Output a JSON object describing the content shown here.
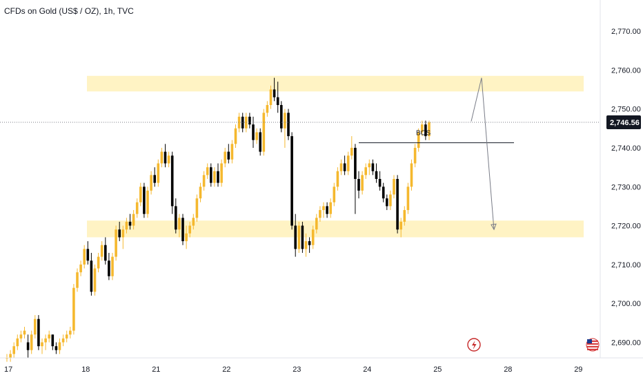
{
  "header": {
    "title": "CFDs on Gold (US$ / OZ), 1h, TVC"
  },
  "current_price": {
    "label": "2,746.56",
    "value": 2746.56,
    "bg_color": "#131722"
  },
  "colors": {
    "up": "#f5b82e",
    "down": "#000000",
    "zone": "#fff3c4",
    "annotation": "#787b86"
  },
  "icons": {
    "event": "lightning-icon",
    "flag": "us-flag-icon"
  },
  "chart_data": {
    "type": "candlestick",
    "title": "CFDs on Gold (US$ / OZ), 1h, TVC",
    "ylim": [
      2686,
      2778
    ],
    "y_ticks": [
      {
        "value": 2770,
        "label": "2,770.00"
      },
      {
        "value": 2760,
        "label": "2,760.00"
      },
      {
        "value": 2750,
        "label": "2,750.00"
      },
      {
        "value": 2740,
        "label": "2,740.00"
      },
      {
        "value": 2730,
        "label": "2,730.00"
      },
      {
        "value": 2720,
        "label": "2,720.00"
      },
      {
        "value": 2710,
        "label": "2,710.00"
      },
      {
        "value": 2700,
        "label": "2,700.00"
      },
      {
        "value": 2690,
        "label": "2,690.00"
      }
    ],
    "x_ticks": [
      {
        "index": 0,
        "label": "17"
      },
      {
        "index": 22,
        "label": "18"
      },
      {
        "index": 42,
        "label": "21"
      },
      {
        "index": 62,
        "label": "22"
      },
      {
        "index": 82,
        "label": "23"
      },
      {
        "index": 102,
        "label": "24"
      },
      {
        "index": 122,
        "label": "25"
      },
      {
        "index": 142,
        "label": "28"
      },
      {
        "index": 162,
        "label": "29"
      }
    ],
    "candles": [
      [
        2686,
        2687,
        2685,
        2686
      ],
      [
        2686,
        2688,
        2685,
        2687
      ],
      [
        2687,
        2690,
        2686,
        2689
      ],
      [
        2689,
        2692,
        2688,
        2691
      ],
      [
        2691,
        2693,
        2690,
        2692
      ],
      [
        2692,
        2694,
        2691,
        2693
      ],
      [
        2690,
        2692,
        2686,
        2688
      ],
      [
        2688,
        2693,
        2687,
        2692
      ],
      [
        2692,
        2697,
        2691,
        2696
      ],
      [
        2696,
        2697,
        2688,
        2689
      ],
      [
        2689,
        2691,
        2687,
        2690
      ],
      [
        2690,
        2692,
        2688,
        2691
      ],
      [
        2691,
        2693,
        2690,
        2692
      ],
      [
        2692,
        2692,
        2688,
        2689
      ],
      [
        2689,
        2690,
        2687,
        2688
      ],
      [
        2688,
        2691,
        2687,
        2690
      ],
      [
        2690,
        2692,
        2689,
        2691
      ],
      [
        2691,
        2693,
        2690,
        2692
      ],
      [
        2692,
        2694,
        2691,
        2693
      ],
      [
        2693,
        2705,
        2692,
        2704
      ],
      [
        2704,
        2709,
        2703,
        2708
      ],
      [
        2708,
        2711,
        2707,
        2710
      ],
      [
        2710,
        2715,
        2709,
        2714
      ],
      [
        2714,
        2716,
        2710,
        2711
      ],
      [
        2711,
        2713,
        2702,
        2703
      ],
      [
        2703,
        2710,
        2702,
        2709
      ],
      [
        2709,
        2713,
        2708,
        2712
      ],
      [
        2712,
        2716,
        2711,
        2715
      ],
      [
        2715,
        2717,
        2710,
        2711
      ],
      [
        2711,
        2713,
        2706,
        2707
      ],
      [
        2707,
        2713,
        2706,
        2712
      ],
      [
        2712,
        2720,
        2711,
        2719
      ],
      [
        2719,
        2721,
        2716,
        2717
      ],
      [
        2717,
        2720,
        2714,
        2719
      ],
      [
        2719,
        2722,
        2718,
        2721
      ],
      [
        2721,
        2723,
        2719,
        2720
      ],
      [
        2720,
        2724,
        2719,
        2723
      ],
      [
        2723,
        2727,
        2722,
        2726
      ],
      [
        2726,
        2731,
        2725,
        2730
      ],
      [
        2730,
        2731,
        2722,
        2723
      ],
      [
        2723,
        2730,
        2722,
        2729
      ],
      [
        2729,
        2734,
        2728,
        2733
      ],
      [
        2733,
        2735,
        2730,
        2731
      ],
      [
        2731,
        2737,
        2730,
        2736
      ],
      [
        2736,
        2740,
        2735,
        2739
      ],
      [
        2739,
        2741,
        2735,
        2736
      ],
      [
        2736,
        2739,
        2735,
        2738
      ],
      [
        2738,
        2739,
        2723,
        2725
      ],
      [
        2725,
        2727,
        2718,
        2719
      ],
      [
        2719,
        2723,
        2717,
        2722
      ],
      [
        2722,
        2723,
        2715,
        2716
      ],
      [
        2716,
        2720,
        2714,
        2718
      ],
      [
        2718,
        2721,
        2717,
        2720
      ],
      [
        2720,
        2723,
        2719,
        2722
      ],
      [
        2722,
        2728,
        2721,
        2727
      ],
      [
        2727,
        2731,
        2726,
        2730
      ],
      [
        2730,
        2734,
        2729,
        2733
      ],
      [
        2733,
        2736,
        2732,
        2735
      ],
      [
        2735,
        2736,
        2730,
        2731
      ],
      [
        2731,
        2735,
        2730,
        2734
      ],
      [
        2734,
        2736,
        2730,
        2731
      ],
      [
        2731,
        2737,
        2730,
        2736
      ],
      [
        2736,
        2740,
        2735,
        2739
      ],
      [
        2739,
        2741,
        2736,
        2737
      ],
      [
        2737,
        2742,
        2736,
        2741
      ],
      [
        2741,
        2746,
        2740,
        2745
      ],
      [
        2745,
        2749,
        2744,
        2748
      ],
      [
        2748,
        2749,
        2744,
        2745
      ],
      [
        2745,
        2749,
        2744,
        2748
      ],
      [
        2748,
        2749,
        2745,
        2746
      ],
      [
        2746,
        2748,
        2740,
        2742
      ],
      [
        2742,
        2745,
        2741,
        2744
      ],
      [
        2744,
        2745,
        2738,
        2739
      ],
      [
        2739,
        2750,
        2738,
        2749
      ],
      [
        2749,
        2752,
        2748,
        2751
      ],
      [
        2751,
        2756,
        2750,
        2755
      ],
      [
        2755,
        2758,
        2752,
        2753
      ],
      [
        2753,
        2757,
        2749,
        2751
      ],
      [
        2751,
        2752,
        2744,
        2745
      ],
      [
        2745,
        2750,
        2740,
        2749
      ],
      [
        2749,
        2750,
        2742,
        2743
      ],
      [
        2743,
        2744,
        2719,
        2720
      ],
      [
        2720,
        2723,
        2712,
        2714
      ],
      [
        2714,
        2721,
        2713,
        2720
      ],
      [
        2720,
        2721,
        2713,
        2714
      ],
      [
        2714,
        2718,
        2712,
        2716
      ],
      [
        2716,
        2717,
        2713,
        2715
      ],
      [
        2715,
        2720,
        2714,
        2719
      ],
      [
        2719,
        2723,
        2718,
        2722
      ],
      [
        2722,
        2725,
        2721,
        2724
      ],
      [
        2724,
        2726,
        2722,
        2725
      ],
      [
        2725,
        2726,
        2722,
        2723
      ],
      [
        2723,
        2727,
        2722,
        2726
      ],
      [
        2726,
        2731,
        2725,
        2730
      ],
      [
        2730,
        2735,
        2729,
        2734
      ],
      [
        2734,
        2737,
        2733,
        2736
      ],
      [
        2736,
        2738,
        2733,
        2734
      ],
      [
        2734,
        2739,
        2733,
        2738
      ],
      [
        2738,
        2743,
        2737,
        2740
      ],
      [
        2740,
        2741,
        2723,
        2732
      ],
      [
        2732,
        2734,
        2727,
        2729
      ],
      [
        2729,
        2734,
        2728,
        2733
      ],
      [
        2733,
        2736,
        2732,
        2735
      ],
      [
        2735,
        2737,
        2733,
        2736
      ],
      [
        2736,
        2737,
        2733,
        2734
      ],
      [
        2734,
        2736,
        2731,
        2732
      ],
      [
        2732,
        2734,
        2729,
        2730
      ],
      [
        2730,
        2731,
        2726,
        2727
      ],
      [
        2727,
        2728,
        2724,
        2725
      ],
      [
        2725,
        2729,
        2724,
        2728
      ],
      [
        2728,
        2733,
        2727,
        2732
      ],
      [
        2732,
        2733,
        2718,
        2719
      ],
      [
        2719,
        2722,
        2717,
        2721
      ],
      [
        2721,
        2725,
        2720,
        2724
      ],
      [
        2724,
        2731,
        2723,
        2730
      ],
      [
        2730,
        2737,
        2729,
        2736
      ],
      [
        2736,
        2741,
        2735,
        2740
      ],
      [
        2740,
        2745,
        2739,
        2744
      ],
      [
        2744,
        2747,
        2743,
        2746
      ],
      [
        2746,
        2747,
        2742,
        2743
      ],
      [
        2743,
        2747,
        2742,
        2746.56
      ]
    ]
  }
}
